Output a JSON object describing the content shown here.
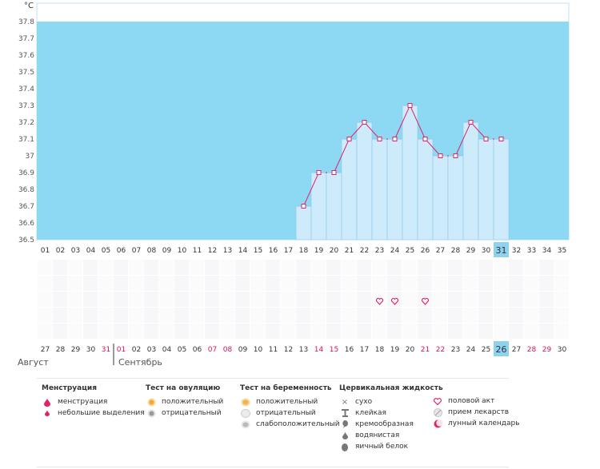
{
  "chart_data": {
    "type": "line",
    "y_unit": "°C",
    "ylim": [
      36.5,
      37.8
    ],
    "y_ticks": [
      "37.8",
      "37.7",
      "37.6",
      "37.5",
      "37.4",
      "37.3",
      "37.2",
      "37.1",
      "37",
      "36.9",
      "36.8",
      "36.7",
      "36.6",
      "36.5"
    ],
    "day_numbers": [
      "01",
      "02",
      "03",
      "04",
      "05",
      "06",
      "07",
      "08",
      "09",
      "10",
      "11",
      "12",
      "13",
      "14",
      "15",
      "16",
      "17",
      "18",
      "19",
      "20",
      "21",
      "22",
      "23",
      "24",
      "25",
      "26",
      "27",
      "28",
      "29",
      "30",
      "31",
      "32",
      "33",
      "34",
      "35"
    ],
    "current_day": "31",
    "series": [
      {
        "day": [
          18,
          19,
          20,
          21,
          22,
          23,
          24,
          25,
          26,
          27,
          28,
          29,
          30,
          31
        ],
        "temperature": [
          36.7,
          36.9,
          36.9,
          37.1,
          37.2,
          37.1,
          37.1,
          37.3,
          37.1,
          37.0,
          37.0,
          37.2,
          37.1,
          37.1
        ]
      }
    ],
    "intercourse_days": [
      23,
      24,
      26
    ],
    "dates": [
      "27",
      "28",
      "29",
      "30",
      "31",
      "01",
      "02",
      "03",
      "04",
      "05",
      "06",
      "07",
      "08",
      "09",
      "10",
      "11",
      "12",
      "13",
      "14",
      "15",
      "16",
      "17",
      "18",
      "19",
      "20",
      "21",
      "22",
      "23",
      "24",
      "25",
      "26",
      "27",
      "28",
      "29",
      "30"
    ],
    "weekend_date_indices": [
      4,
      5,
      11,
      12,
      18,
      19,
      25,
      26,
      32,
      33
    ],
    "current_date": "26",
    "month_labels": [
      "Август",
      "Сентябрь"
    ],
    "colors": {
      "background": "#8dd8f2",
      "fill": "#cdebfb",
      "line": "#e0226a",
      "weekend": "#d8145a",
      "current": "#8dd2ef"
    }
  },
  "legend": {
    "menstruation": {
      "title": "Менструация",
      "items": [
        "менструация",
        "небольшие выделения"
      ],
      "icons": [
        "drop-icon",
        "small-drop-icon"
      ]
    },
    "ovulation_test": {
      "title": "Тест на овуляцию",
      "items": [
        "положительный",
        "отрицательный"
      ],
      "icons": [
        "positive-test-icon",
        "negative-test-icon"
      ]
    },
    "pregnancy_test": {
      "title": "Тест на беременность",
      "items": [
        "положительный",
        "отрицательный",
        "слабоположительный"
      ],
      "icons": [
        "positive-pregnancy-icon",
        "negative-pregnancy-icon",
        "weak-positive-pregnancy-icon"
      ]
    },
    "cervical_fluid": {
      "title": "Цервикальная жидкость",
      "items": [
        "сухо",
        "клейкая",
        "кремообразная",
        "водянистая",
        "яичный белок"
      ],
      "icons": [
        "dry-icon",
        "sticky-icon",
        "creamy-icon",
        "watery-icon",
        "egg-white-icon"
      ]
    },
    "other": {
      "items": [
        "половой акт",
        "прием лекарств",
        "лунный календарь"
      ],
      "icons": [
        "heart-icon",
        "pill-icon",
        "moon-icon"
      ]
    }
  }
}
